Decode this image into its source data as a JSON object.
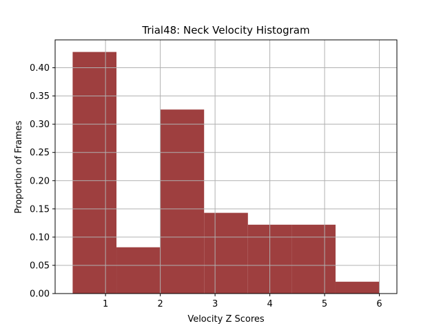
{
  "chart_data": {
    "type": "bar",
    "title": "Trial48: Neck Velocity Histogram",
    "xlabel": "Velocity Z Scores",
    "ylabel": "Proportion of Frames",
    "bins": [
      {
        "x0": 0.4,
        "x1": 1.2,
        "value": 0.428
      },
      {
        "x0": 1.2,
        "x1": 2.0,
        "value": 0.082
      },
      {
        "x0": 2.0,
        "x1": 2.8,
        "value": 0.326
      },
      {
        "x0": 2.8,
        "x1": 3.6,
        "value": 0.143
      },
      {
        "x0": 3.6,
        "x1": 4.4,
        "value": 0.122
      },
      {
        "x0": 4.4,
        "x1": 5.2,
        "value": 0.122
      },
      {
        "x0": 5.2,
        "x1": 6.0,
        "value": 0.021
      }
    ],
    "xlim": [
      0.08,
      6.32
    ],
    "ylim": [
      0,
      0.4494
    ],
    "xticks": [
      1,
      2,
      3,
      4,
      5,
      6
    ],
    "xtick_labels": [
      "1",
      "2",
      "3",
      "4",
      "5",
      "6"
    ],
    "yticks": [
      0,
      0.05,
      0.1,
      0.15,
      0.2,
      0.25,
      0.3,
      0.35,
      0.4
    ],
    "ytick_labels": [
      "0.00",
      "0.05",
      "0.10",
      "0.15",
      "0.20",
      "0.25",
      "0.30",
      "0.35",
      "0.40"
    ],
    "grid": true,
    "bar_color": "#9e3f3f",
    "grid_color": "#b0b0b0"
  }
}
